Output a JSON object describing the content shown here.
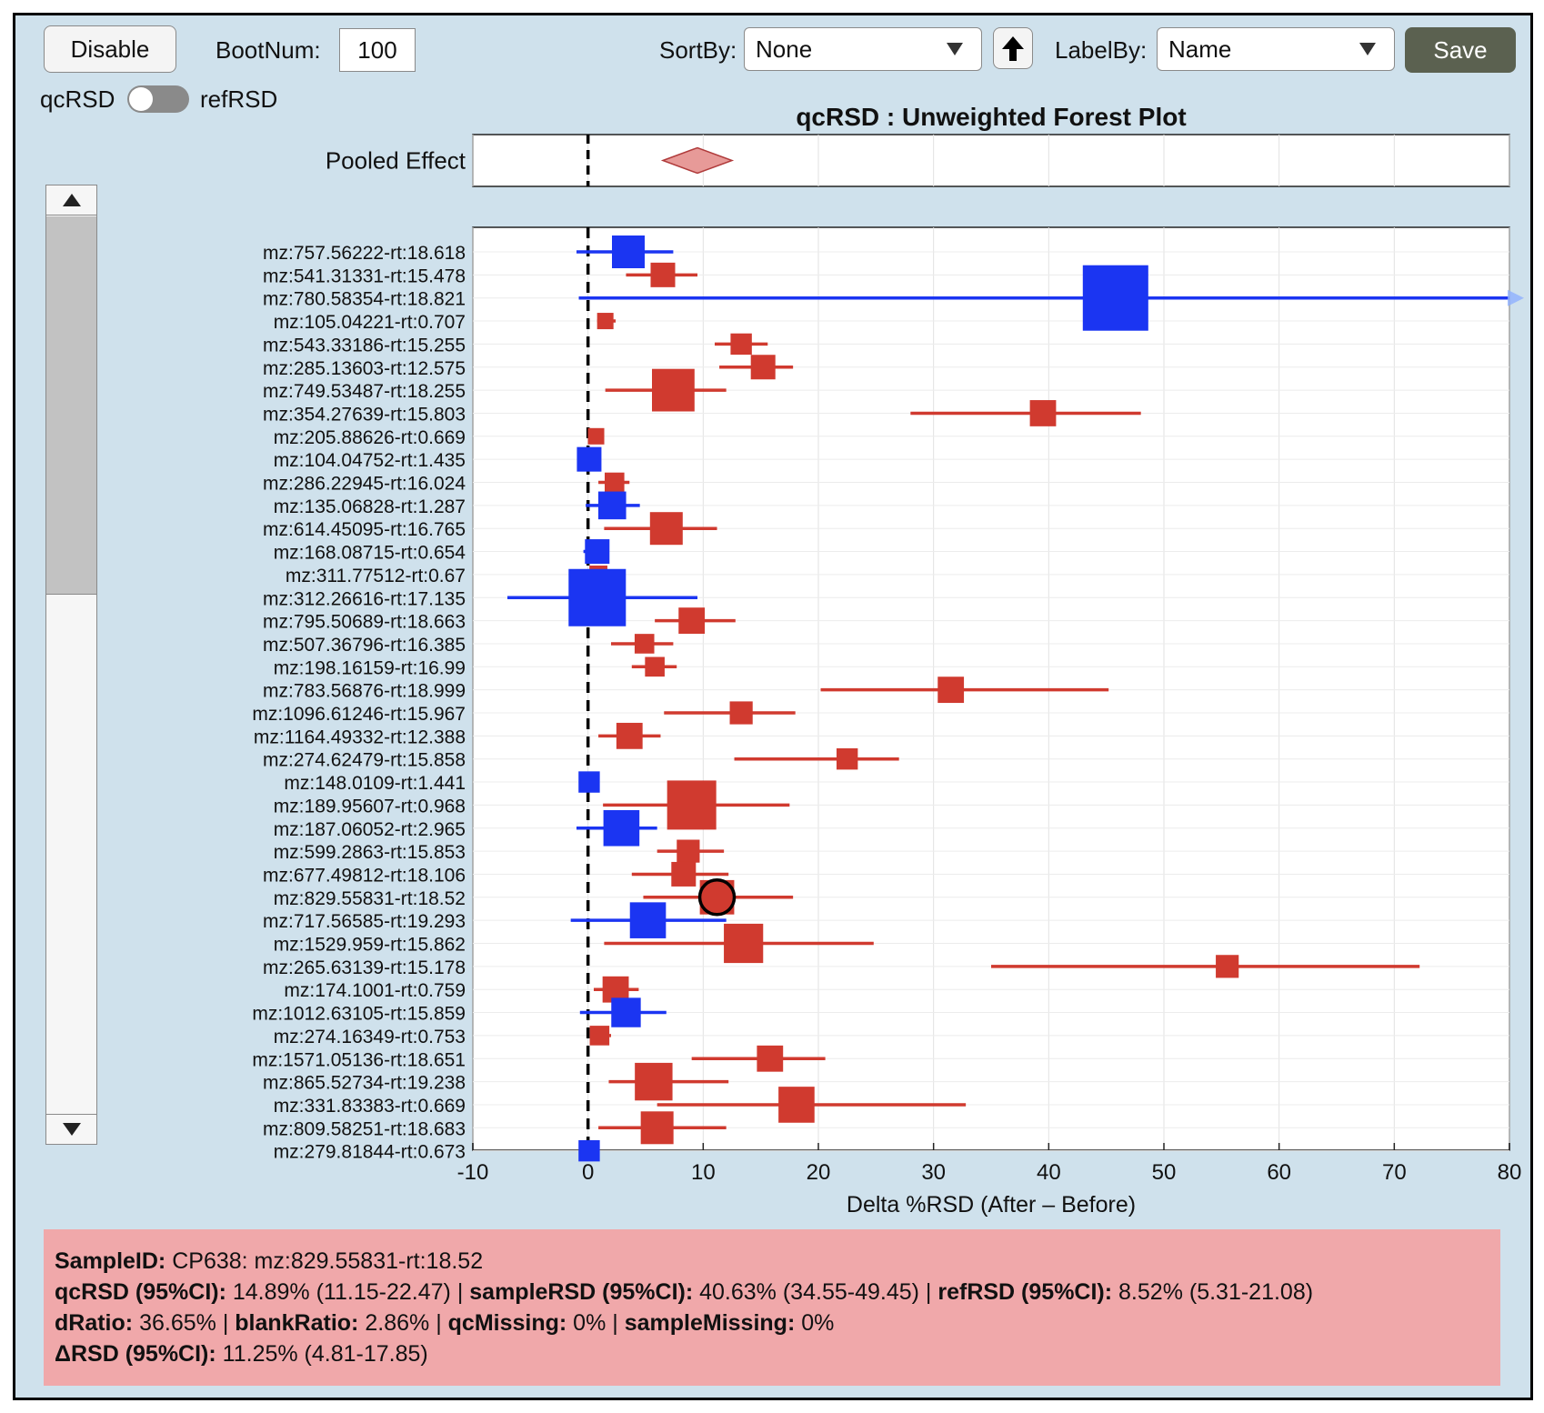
{
  "toolbar": {
    "disable_label": "Disable",
    "bootnum_label": "BootNum:",
    "bootnum_value": "100",
    "sortby_label": "SortBy:",
    "sortby_value": "None",
    "labelby_label": "LabelBy:",
    "labelby_value": "Name",
    "save_label": "Save",
    "sort_direction_icon": "arrow-up-icon"
  },
  "toggle": {
    "left_label": "qcRSD",
    "right_label": "refRSD",
    "state": "qcRSD"
  },
  "colors": {
    "background": "#cfe1ec",
    "red_series": "#d03a2f",
    "blue_series": "#1b35f2",
    "pooled_diamond": "#e79a98",
    "info_panel": "#f0a8aa",
    "save_button": "#5b6150"
  },
  "info": {
    "sample_id_label": "SampleID:",
    "sample_id_value": "CP638: mz:829.55831-rt:18.52",
    "qcrsd_label": "qcRSD (95%CI):",
    "qcrsd_value": "14.89% (11.15-22.47)",
    "samplersd_label": "sampleRSD (95%CI):",
    "samplersd_value": "40.63% (34.55-49.45)",
    "refrsd_label": "refRSD (95%CI):",
    "refrsd_value": "8.52% (5.31-21.08)",
    "dratio_label": "dRatio:",
    "dratio_value": "36.65%",
    "blankratio_label": "blankRatio:",
    "blankratio_value": "2.86%",
    "qcmissing_label": "qcMissing:",
    "qcmissing_value": "0%",
    "samplemissing_label": "sampleMissing:",
    "samplemissing_value": "0%",
    "deltarsd_label": "ΔRSD (95%CI):",
    "deltarsd_value": "11.25% (4.81-17.85)",
    "separator": "|"
  },
  "chart_data": {
    "type": "forest",
    "title": "qcRSD : Unweighted Forest Plot",
    "xlabel": "Delta %RSD (After – Before)",
    "xlim": [
      -10,
      80
    ],
    "xticks": [
      -10,
      0,
      10,
      20,
      30,
      40,
      50,
      60,
      70,
      80
    ],
    "reference_line": 0,
    "grid": true,
    "pooled": {
      "label": "Pooled Effect",
      "estimate": 9.5,
      "lo": 6.5,
      "hi": 12.5
    },
    "selected": "mz:829.55831-rt:18.52",
    "rows": [
      {
        "label": "mz:757.56222-rt:18.618",
        "est": 3.5,
        "lo": -1,
        "hi": 7.4,
        "color": "blue",
        "size": 2
      },
      {
        "label": "mz:541.31331-rt:15.478",
        "est": 6.5,
        "lo": 3.3,
        "hi": 9.5,
        "color": "red",
        "size": 1.5
      },
      {
        "label": "mz:780.58354-rt:18.821",
        "est": 45.8,
        "lo": -0.8,
        "hi": 80,
        "color": "blue",
        "size": 4,
        "clipped": true
      },
      {
        "label": "mz:105.04221-rt:0.707",
        "est": 1.5,
        "lo": 0.8,
        "hi": 2.4,
        "color": "red",
        "size": 1
      },
      {
        "label": "mz:543.33186-rt:15.255",
        "est": 13.3,
        "lo": 11,
        "hi": 15.6,
        "color": "red",
        "size": 1.3
      },
      {
        "label": "mz:285.13603-rt:12.575",
        "est": 15.2,
        "lo": 11.4,
        "hi": 17.8,
        "color": "red",
        "size": 1.5
      },
      {
        "label": "mz:749.53487-rt:18.255",
        "est": 7.4,
        "lo": 1.5,
        "hi": 12,
        "color": "red",
        "size": 2.6
      },
      {
        "label": "mz:354.27639-rt:15.803",
        "est": 39.5,
        "lo": 28,
        "hi": 48,
        "color": "red",
        "size": 1.6
      },
      {
        "label": "mz:205.88626-rt:0.669",
        "est": 0.7,
        "lo": 0.3,
        "hi": 1.1,
        "color": "red",
        "size": 1
      },
      {
        "label": "mz:104.04752-rt:1.435",
        "est": 0.1,
        "lo": -0.5,
        "hi": 1.1,
        "color": "blue",
        "size": 1.5
      },
      {
        "label": "mz:286.22945-rt:16.024",
        "est": 2.3,
        "lo": 0.9,
        "hi": 3.6,
        "color": "red",
        "size": 1.2
      },
      {
        "label": "mz:135.06828-rt:1.287",
        "est": 2.1,
        "lo": -0.2,
        "hi": 4.5,
        "color": "blue",
        "size": 1.7
      },
      {
        "label": "mz:614.45095-rt:16.765",
        "est": 6.8,
        "lo": 1.4,
        "hi": 11.2,
        "color": "red",
        "size": 2
      },
      {
        "label": "mz:168.08715-rt:0.654",
        "est": 0.8,
        "lo": -0.4,
        "hi": 1.5,
        "color": "blue",
        "size": 1.5
      },
      {
        "label": "mz:311.77512-rt:0.67",
        "est": 0.9,
        "lo": 0.2,
        "hi": 1.9,
        "color": "red",
        "size": 1.1
      },
      {
        "label": "mz:312.26616-rt:17.135",
        "est": 0.8,
        "lo": -7,
        "hi": 9.5,
        "color": "blue",
        "size": 3.5
      },
      {
        "label": "mz:795.50689-rt:18.663",
        "est": 9,
        "lo": 5.8,
        "hi": 12.8,
        "color": "red",
        "size": 1.6
      },
      {
        "label": "mz:507.36796-rt:16.385",
        "est": 4.9,
        "lo": 2,
        "hi": 7.4,
        "color": "red",
        "size": 1.2
      },
      {
        "label": "mz:198.16159-rt:16.99",
        "est": 5.8,
        "lo": 3.8,
        "hi": 7.7,
        "color": "red",
        "size": 1.2
      },
      {
        "label": "mz:783.56876-rt:18.999",
        "est": 31.5,
        "lo": 20.2,
        "hi": 45.2,
        "color": "red",
        "size": 1.6
      },
      {
        "label": "mz:1096.61246-rt:15.967",
        "est": 13.3,
        "lo": 6.6,
        "hi": 18,
        "color": "red",
        "size": 1.4
      },
      {
        "label": "mz:1164.49332-rt:12.388",
        "est": 3.6,
        "lo": 0.9,
        "hi": 6.3,
        "color": "red",
        "size": 1.6
      },
      {
        "label": "mz:274.62479-rt:15.858",
        "est": 22.5,
        "lo": 12.7,
        "hi": 27,
        "color": "red",
        "size": 1.3
      },
      {
        "label": "mz:148.0109-rt:1.441",
        "est": 0.1,
        "lo": -0.4,
        "hi": 0.6,
        "color": "blue",
        "size": 1.3
      },
      {
        "label": "mz:189.95607-rt:0.968",
        "est": 9,
        "lo": 1.3,
        "hi": 17.5,
        "color": "red",
        "size": 3
      },
      {
        "label": "mz:187.06052-rt:2.965",
        "est": 2.9,
        "lo": -1,
        "hi": 6,
        "color": "blue",
        "size": 2.2
      },
      {
        "label": "mz:599.2863-rt:15.853",
        "est": 8.7,
        "lo": 6,
        "hi": 11.8,
        "color": "red",
        "size": 1.4
      },
      {
        "label": "mz:677.49812-rt:18.106",
        "est": 8.3,
        "lo": 3.8,
        "hi": 12.2,
        "color": "red",
        "size": 1.5
      },
      {
        "label": "mz:829.55831-rt:18.52",
        "est": 11.2,
        "lo": 4.8,
        "hi": 17.8,
        "color": "red",
        "size": 2.1
      },
      {
        "label": "mz:717.56585-rt:19.293",
        "est": 5.2,
        "lo": -1.5,
        "hi": 12,
        "color": "blue",
        "size": 2.2
      },
      {
        "label": "mz:1529.959-rt:15.862",
        "est": 13.5,
        "lo": 1.4,
        "hi": 24.8,
        "color": "red",
        "size": 2.4
      },
      {
        "label": "mz:265.63139-rt:15.178",
        "est": 55.5,
        "lo": 35,
        "hi": 72.2,
        "color": "red",
        "size": 1.4
      },
      {
        "label": "mz:174.1001-rt:0.759",
        "est": 2.4,
        "lo": 0.5,
        "hi": 4.4,
        "color": "red",
        "size": 1.6
      },
      {
        "label": "mz:1012.63105-rt:15.859",
        "est": 3.3,
        "lo": -0.7,
        "hi": 6.8,
        "color": "blue",
        "size": 1.8
      },
      {
        "label": "mz:274.16349-rt:0.753",
        "est": 1,
        "lo": 0.3,
        "hi": 2,
        "color": "red",
        "size": 1.2
      },
      {
        "label": "mz:1571.05136-rt:18.651",
        "est": 15.8,
        "lo": 9,
        "hi": 20.6,
        "color": "red",
        "size": 1.6
      },
      {
        "label": "mz:865.52734-rt:19.238",
        "est": 5.7,
        "lo": 1.8,
        "hi": 12.2,
        "color": "red",
        "size": 2.3
      },
      {
        "label": "mz:331.83383-rt:0.669",
        "est": 18.1,
        "lo": 6,
        "hi": 32.8,
        "color": "red",
        "size": 2.2
      },
      {
        "label": "mz:809.58251-rt:18.683",
        "est": 6,
        "lo": 0.9,
        "hi": 12,
        "color": "red",
        "size": 2
      },
      {
        "label": "mz:279.81844-rt:0.673",
        "est": 0.1,
        "lo": -0.3,
        "hi": 0.5,
        "color": "blue",
        "size": 1.3
      }
    ]
  }
}
